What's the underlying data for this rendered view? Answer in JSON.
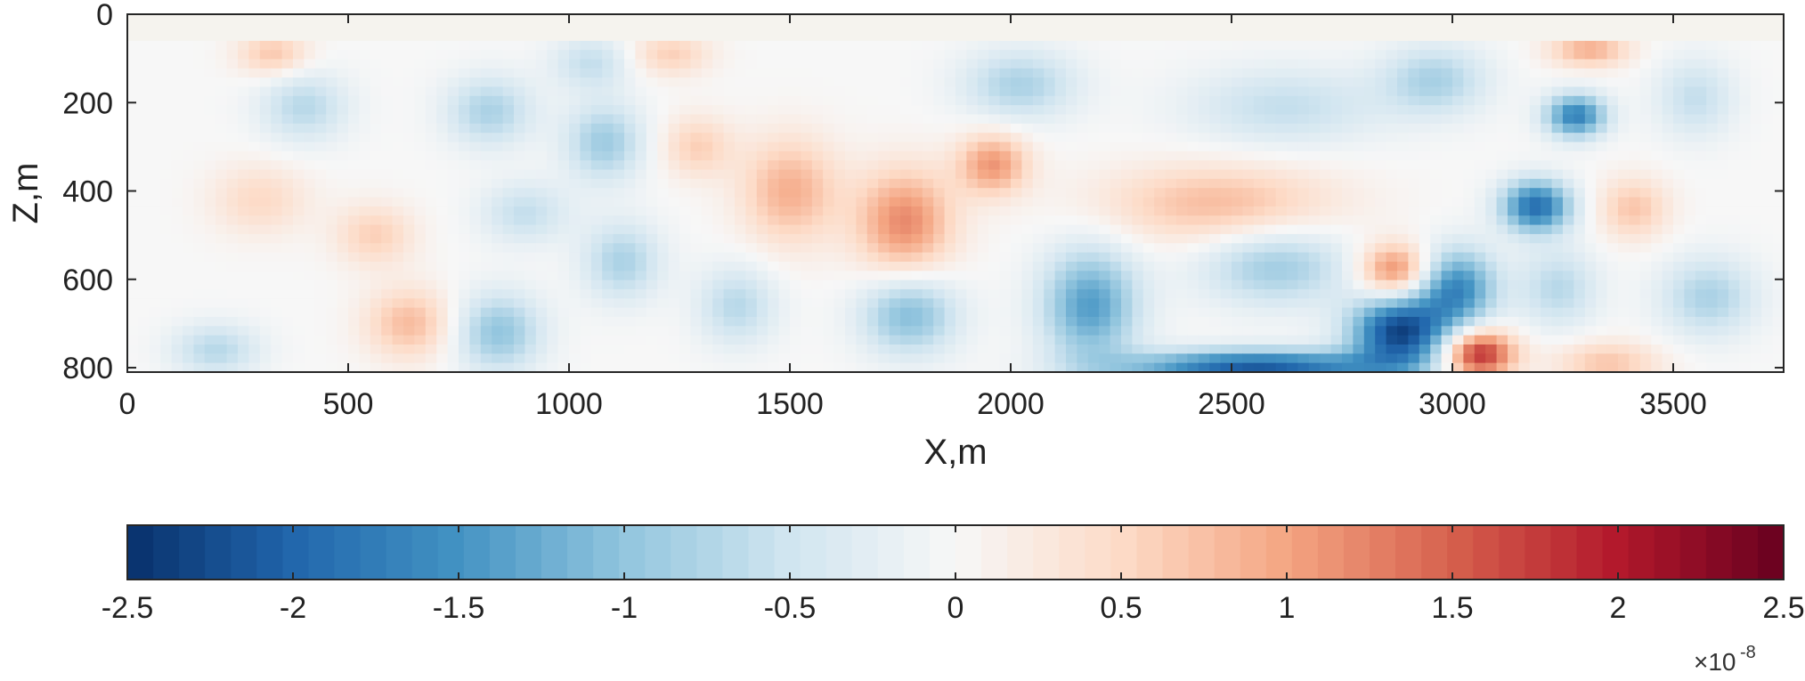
{
  "chart_data": [
    {
      "type": "heatmap",
      "title": "",
      "xlabel": "X,m",
      "ylabel": "Z,m",
      "xlim": [
        0,
        3750
      ],
      "ylim": [
        0,
        810
      ],
      "y_direction": "reversed",
      "x_ticks": [
        0,
        500,
        1000,
        1500,
        2000,
        2500,
        3000,
        3500
      ],
      "x_tick_labels": [
        "0",
        "500",
        "1000",
        "1500",
        "2000",
        "2500",
        "3000",
        "3500"
      ],
      "y_ticks": [
        0,
        200,
        400,
        600,
        800
      ],
      "y_tick_labels": [
        "0",
        "200",
        "400",
        "600",
        "800"
      ],
      "unfilled_top_band_z": [
        0,
        60
      ],
      "colormap": "diverging blue-white-red",
      "blobs": [
        {
          "x": 2560,
          "z": 800,
          "rx": 300,
          "rz": 40,
          "v": -2.1
        },
        {
          "x": 2880,
          "z": 720,
          "rx": 110,
          "rz": 80,
          "v": -2.3
        },
        {
          "x": 3010,
          "z": 620,
          "rx": 90,
          "rz": 90,
          "v": -1.6
        },
        {
          "x": 3190,
          "z": 435,
          "rx": 80,
          "rz": 60,
          "v": -1.9
        },
        {
          "x": 3280,
          "z": 230,
          "rx": 70,
          "rz": 50,
          "v": -1.7
        },
        {
          "x": 3060,
          "z": 770,
          "rx": 80,
          "rz": 55,
          "v": 2.0
        },
        {
          "x": 2870,
          "z": 580,
          "rx": 80,
          "rz": 60,
          "v": 1.3
        },
        {
          "x": 2470,
          "z": 430,
          "rx": 260,
          "rz": 90,
          "v": 0.8
        },
        {
          "x": 1760,
          "z": 470,
          "rx": 110,
          "rz": 120,
          "v": 1.2
        },
        {
          "x": 1960,
          "z": 340,
          "rx": 80,
          "rz": 70,
          "v": 1.1
        },
        {
          "x": 1500,
          "z": 400,
          "rx": 110,
          "rz": 120,
          "v": 0.9
        },
        {
          "x": 3310,
          "z": 80,
          "rx": 90,
          "rz": 40,
          "v": 0.9
        },
        {
          "x": 3410,
          "z": 440,
          "rx": 80,
          "rz": 70,
          "v": 0.7
        },
        {
          "x": 3350,
          "z": 790,
          "rx": 120,
          "rz": 50,
          "v": 0.7
        },
        {
          "x": 640,
          "z": 700,
          "rx": 100,
          "rz": 80,
          "v": 0.8
        },
        {
          "x": 2180,
          "z": 660,
          "rx": 110,
          "rz": 130,
          "v": -1.4
        },
        {
          "x": 1770,
          "z": 680,
          "rx": 110,
          "rz": 90,
          "v": -1.1
        },
        {
          "x": 2600,
          "z": 570,
          "rx": 170,
          "rz": 90,
          "v": -0.9
        },
        {
          "x": 2620,
          "z": 210,
          "rx": 220,
          "rz": 90,
          "v": -0.6
        },
        {
          "x": 1080,
          "z": 290,
          "rx": 90,
          "rz": 90,
          "v": -0.9
        },
        {
          "x": 840,
          "z": 720,
          "rx": 100,
          "rz": 90,
          "v": -1.0
        },
        {
          "x": 1120,
          "z": 560,
          "rx": 90,
          "rz": 90,
          "v": -0.8
        },
        {
          "x": 400,
          "z": 210,
          "rx": 100,
          "rz": 80,
          "v": -0.7
        },
        {
          "x": 820,
          "z": 220,
          "rx": 100,
          "rz": 80,
          "v": -0.8
        },
        {
          "x": 300,
          "z": 420,
          "rx": 110,
          "rz": 80,
          "v": 0.5
        },
        {
          "x": 1050,
          "z": 110,
          "rx": 90,
          "rz": 60,
          "v": -0.6
        },
        {
          "x": 3550,
          "z": 190,
          "rx": 90,
          "rz": 90,
          "v": -0.6
        },
        {
          "x": 3580,
          "z": 640,
          "rx": 110,
          "rz": 90,
          "v": -0.8
        },
        {
          "x": 200,
          "z": 760,
          "rx": 100,
          "rz": 60,
          "v": -0.7
        },
        {
          "x": 1380,
          "z": 660,
          "rx": 90,
          "rz": 90,
          "v": -0.7
        },
        {
          "x": 1230,
          "z": 90,
          "rx": 90,
          "rz": 50,
          "v": 0.6
        },
        {
          "x": 330,
          "z": 90,
          "rx": 80,
          "rz": 50,
          "v": 0.7
        },
        {
          "x": 900,
          "z": 450,
          "rx": 100,
          "rz": 70,
          "v": -0.6
        },
        {
          "x": 560,
          "z": 500,
          "rx": 90,
          "rz": 70,
          "v": 0.6
        },
        {
          "x": 2020,
          "z": 160,
          "rx": 130,
          "rz": 80,
          "v": -0.8
        },
        {
          "x": 1290,
          "z": 300,
          "rx": 80,
          "rz": 70,
          "v": 0.6
        },
        {
          "x": 2960,
          "z": 150,
          "rx": 120,
          "rz": 80,
          "v": -0.8
        },
        {
          "x": 3240,
          "z": 620,
          "rx": 90,
          "rz": 90,
          "v": -0.7
        }
      ]
    },
    {
      "type": "colorbar",
      "range": [
        -2.5,
        2.5
      ],
      "ticks": [
        -2.5,
        -2,
        -1.5,
        -1,
        -0.5,
        0,
        0.5,
        1,
        1.5,
        2,
        2.5
      ],
      "tick_labels": [
        "-2.5",
        "-2",
        "-1.5",
        "-1",
        "-0.5",
        "0",
        "0.5",
        "1",
        "1.5",
        "2",
        "2.5"
      ],
      "multiplier_text": "×10",
      "multiplier_exponent": "-8",
      "n_steps": 64,
      "color_stops": [
        "#08306b",
        "#2166ac",
        "#4393c3",
        "#92c5de",
        "#d1e5f0",
        "#f7f7f7",
        "#fddbc7",
        "#f4a582",
        "#d6604d",
        "#b2182b",
        "#67001f"
      ]
    }
  ]
}
